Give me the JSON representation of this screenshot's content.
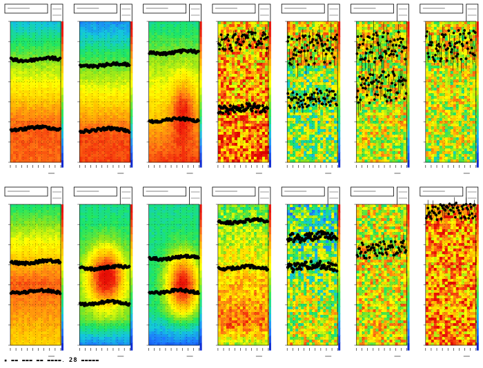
{
  "figure": {
    "layout": "2 rows x 7 columns of heatmap panels with overlaid black marker tracks",
    "background": "#ffffff",
    "colormap": [
      "#0a28d2",
      "#1e78ff",
      "#14c8dc",
      "#1ee664",
      "#8ce61e",
      "#ffff00",
      "#ffc800",
      "#ff7814",
      "#f01e0a",
      "#dc0000"
    ],
    "marker_color": "#000000",
    "footer_text": "28"
  },
  "chart_data": [
    {
      "type": "heatmap",
      "panel": "r1c1",
      "row": 1,
      "col": 1,
      "noise": "low",
      "tracks": [
        {
          "level": 0.27,
          "spread": "tight"
        },
        {
          "level": 0.76,
          "spread": "tight"
        }
      ]
    },
    {
      "type": "heatmap",
      "panel": "r1c2",
      "row": 1,
      "col": 2,
      "noise": "low",
      "tracks": [
        {
          "level": 0.31,
          "spread": "tight"
        },
        {
          "level": 0.77,
          "spread": "tight"
        }
      ]
    },
    {
      "type": "heatmap",
      "panel": "r1c3",
      "row": 1,
      "col": 3,
      "noise": "low",
      "tracks": [
        {
          "level": 0.22,
          "spread": "tight"
        },
        {
          "level": 0.7,
          "spread": "tight"
        }
      ]
    },
    {
      "type": "heatmap",
      "panel": "r1c4",
      "row": 1,
      "col": 4,
      "noise": "high",
      "tracks": [
        {
          "level": 0.14,
          "spread": "wide"
        },
        {
          "level": 0.62,
          "spread": "medium"
        }
      ]
    },
    {
      "type": "heatmap",
      "panel": "r1c5",
      "row": 1,
      "col": 5,
      "noise": "high",
      "tracks": [
        {
          "level": 0.2,
          "spread": "very-wide"
        },
        {
          "level": 0.55,
          "spread": "wide"
        }
      ]
    },
    {
      "type": "heatmap",
      "panel": "r1c6",
      "row": 1,
      "col": 6,
      "noise": "high",
      "tracks": [
        {
          "level": 0.18,
          "spread": "very-wide"
        },
        {
          "level": 0.47,
          "spread": "very-wide"
        }
      ]
    },
    {
      "type": "heatmap",
      "panel": "r1c7",
      "row": 1,
      "col": 7,
      "noise": "high",
      "tracks": [
        {
          "level": 0.17,
          "spread": "very-wide"
        }
      ]
    },
    {
      "type": "heatmap",
      "panel": "r2c1",
      "row": 2,
      "col": 1,
      "noise": "low",
      "tracks": [
        {
          "level": 0.41,
          "spread": "tight"
        },
        {
          "level": 0.62,
          "spread": "tight"
        }
      ]
    },
    {
      "type": "heatmap",
      "panel": "r2c2",
      "row": 2,
      "col": 2,
      "noise": "low",
      "tracks": [
        {
          "level": 0.45,
          "spread": "tight"
        },
        {
          "level": 0.7,
          "spread": "tight"
        }
      ]
    },
    {
      "type": "heatmap",
      "panel": "r2c3",
      "row": 2,
      "col": 3,
      "noise": "low",
      "tracks": [
        {
          "level": 0.38,
          "spread": "tight"
        },
        {
          "level": 0.62,
          "spread": "tight"
        }
      ]
    },
    {
      "type": "heatmap",
      "panel": "r2c4",
      "row": 2,
      "col": 4,
      "noise": "medium",
      "tracks": [
        {
          "level": 0.12,
          "spread": "tight"
        },
        {
          "level": 0.45,
          "spread": "tight"
        }
      ]
    },
    {
      "type": "heatmap",
      "panel": "r2c5",
      "row": 2,
      "col": 5,
      "noise": "high",
      "tracks": [
        {
          "level": 0.23,
          "spread": "medium"
        },
        {
          "level": 0.44,
          "spread": "medium"
        }
      ]
    },
    {
      "type": "heatmap",
      "panel": "r2c6",
      "row": 2,
      "col": 6,
      "noise": "high",
      "tracks": [
        {
          "level": 0.32,
          "spread": "wide"
        }
      ]
    },
    {
      "type": "heatmap",
      "panel": "r2c7",
      "row": 2,
      "col": 7,
      "noise": "high",
      "tracks": [
        {
          "level": 0.05,
          "spread": "wide"
        }
      ]
    }
  ]
}
